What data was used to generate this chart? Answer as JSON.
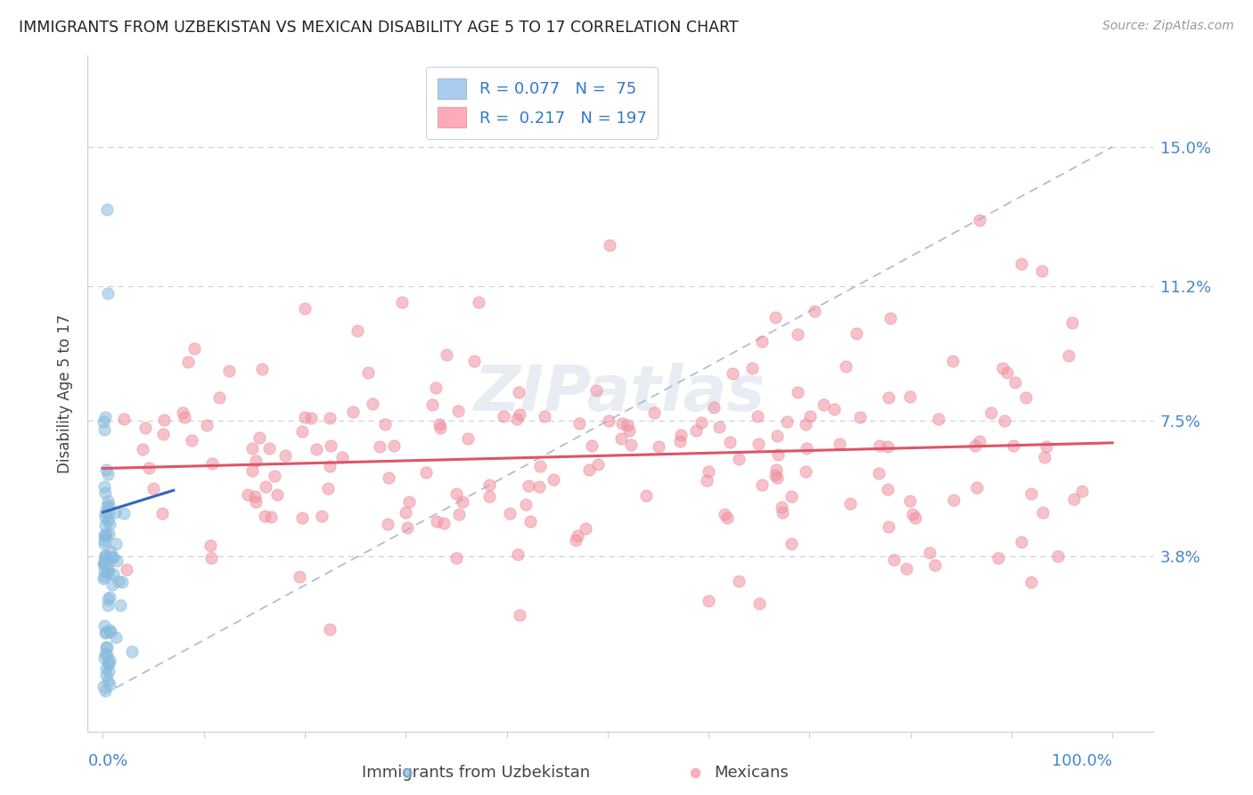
{
  "title": "IMMIGRANTS FROM UZBEKISTAN VS MEXICAN DISABILITY AGE 5 TO 17 CORRELATION CHART",
  "source": "Source: ZipAtlas.com",
  "ylabel": "Disability Age 5 to 17",
  "ytick_labels": [
    "3.8%",
    "7.5%",
    "11.2%",
    "15.0%"
  ],
  "ytick_values": [
    0.038,
    0.075,
    0.112,
    0.15
  ],
  "xlim_display": [
    0.0,
    1.0
  ],
  "ylim_display": [
    0.0,
    0.165
  ],
  "scatter_uzbek_color": "#88bbdd",
  "scatter_mexican_color": "#f090a0",
  "uzbek_line_color": "#3366bb",
  "mexican_line_color": "#dd5566",
  "diag_line_color": "#aabbcc",
  "watermark": "ZIPatlas",
  "uzbek_N": 75,
  "mexican_N": 197,
  "legend_label_1": "R = 0.077   N =  75",
  "legend_label_2": "R =  0.217   N = 197",
  "legend_color_1": "#aaccee",
  "legend_color_2": "#ffaabb",
  "uzbek_line_x0": 0.0,
  "uzbek_line_x1": 0.07,
  "uzbek_line_y0": 0.05,
  "uzbek_line_y1": 0.056,
  "mexican_line_x0": 0.0,
  "mexican_line_x1": 1.0,
  "mexican_line_y0": 0.062,
  "mexican_line_y1": 0.069
}
